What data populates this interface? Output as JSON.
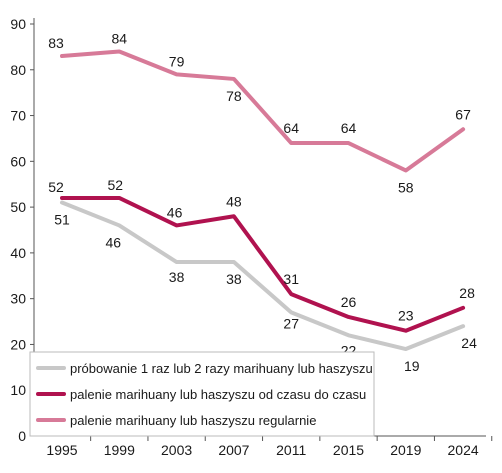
{
  "chart_data": {
    "type": "line",
    "title": "",
    "xlabel": "",
    "ylabel": "",
    "categories": [
      "1995",
      "1999",
      "2003",
      "2007",
      "2011",
      "2015",
      "2019",
      "2024"
    ],
    "ylim": [
      0,
      90
    ],
    "yticks": [
      0,
      10,
      20,
      30,
      40,
      50,
      60,
      70,
      80,
      90
    ],
    "grid": false,
    "legend_position": "bottom-left",
    "series": [
      {
        "name": "próbowanie 1 raz lub 2 razy marihuany lub haszyszu",
        "color": "#c8c8c8",
        "values": [
          51,
          46,
          38,
          38,
          27,
          22,
          19,
          24
        ],
        "labels": [
          "51",
          "46",
          "38",
          "38",
          "27",
          "22",
          "19",
          "24"
        ]
      },
      {
        "name": "palenie marihuany lub haszyszu od czasu do czasu",
        "color": "#b0124f",
        "values": [
          52,
          52,
          46,
          48,
          31,
          26,
          23,
          28
        ],
        "labels": [
          "52",
          "52",
          "46",
          "48",
          "31",
          "26",
          "23",
          "28"
        ]
      },
      {
        "name": "palenie marihuany lub haszyszu regularnie",
        "color": "#d77a98",
        "values": [
          83,
          84,
          79,
          78,
          64,
          64,
          58,
          67
        ],
        "labels": [
          "83",
          "84",
          "79",
          "78",
          "64",
          "64",
          "58",
          "67"
        ]
      }
    ]
  }
}
